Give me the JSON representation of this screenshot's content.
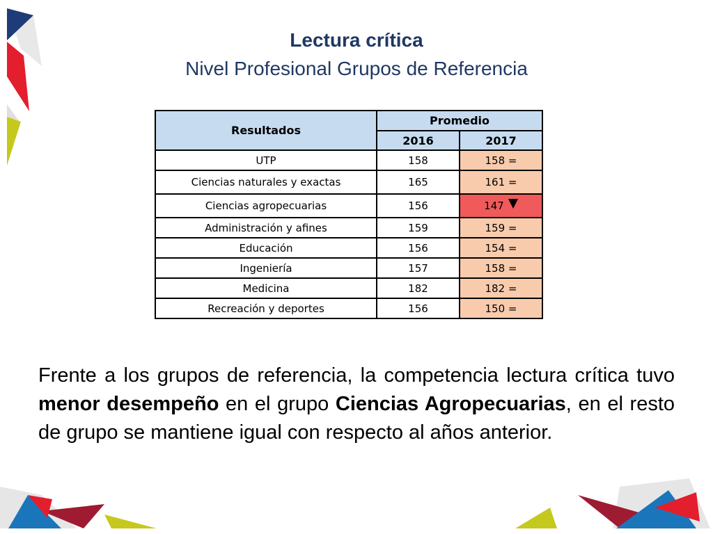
{
  "title": "Lectura crítica",
  "subtitle": "Nivel Profesional Grupos de Referencia",
  "table": {
    "header_resultados": "Resultados",
    "header_promedio": "Promedio",
    "year_2016": "2016",
    "year_2017": "2017",
    "rows": [
      {
        "group": "UTP",
        "v2016": "158",
        "v2017": "158 ="
      },
      {
        "group": "Ciencias naturales y exactas",
        "v2016": "165",
        "v2017": "161 ="
      },
      {
        "group": "Ciencias agropecuarias",
        "v2016": "156",
        "v2017": "147"
      },
      {
        "group": "Administración y afines",
        "v2016": "159",
        "v2017": "159 ="
      },
      {
        "group": "Educación",
        "v2016": "156",
        "v2017": "154 ="
      },
      {
        "group": "Ingeniería",
        "v2016": "157",
        "v2017": "158 ="
      },
      {
        "group": "Medicina",
        "v2016": "182",
        "v2017": "182 ="
      },
      {
        "group": "Recreación y deportes",
        "v2016": "156",
        "v2017": "150 ="
      }
    ]
  },
  "paragraph": {
    "p1": "Frente a los grupos de referencia, la competencia lectura crítica tuvo ",
    "b1": "menor desempeño",
    "p2": " en el grupo ",
    "b2": "Ciencias Agropecuarias",
    "p3": ", en el resto de grupo se mantiene igual con respecto al años anterior."
  },
  "colors": {
    "header_fill": "#c6dbef",
    "cell_2017_fill": "#f8cbad",
    "cell_decrease_fill": "#f05a5a",
    "title_color": "#1f3864",
    "deco_red": "#e31e2d",
    "deco_darkred": "#9e1b32",
    "deco_blue": "#1b75bb",
    "deco_navy": "#1f3c78",
    "deco_lime": "#c5c91d"
  }
}
